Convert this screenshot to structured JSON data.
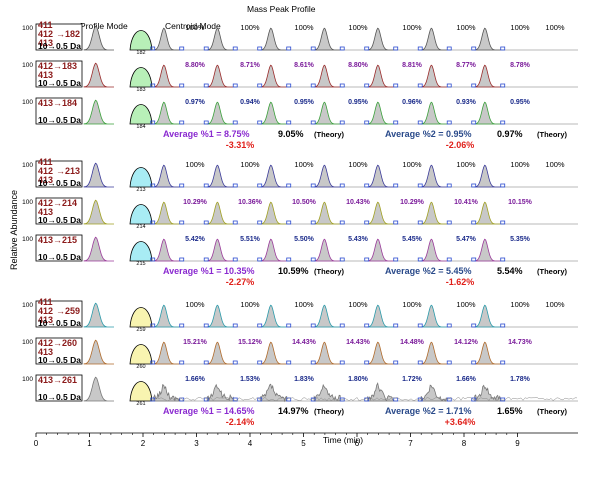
{
  "header": {
    "mass_peak_profile": "Mass Peak Profile",
    "profile_mode": "Profile Mode",
    "centroid_mode": "Centroid Mode"
  },
  "axis": {
    "ylabel": "Relative Abundance",
    "xlabel": "Time (min)",
    "x_ticks": [
      "0",
      "1",
      "2",
      "3",
      "4",
      "5",
      "6",
      "7",
      "8",
      "9"
    ],
    "y_tick": "100"
  },
  "theory_word": "(Theory)",
  "colors": {
    "dark_red": "#8b1a1a",
    "purple": "#7a1a9a",
    "navy": "#1a2a8a",
    "red": "#e0201a",
    "violet": "#8a2ad0",
    "steel_blue": "#2a4a8a",
    "peak_fill": "#c8c8c8",
    "green": "#b8f0b8",
    "cyan": "#a8ecf4",
    "yellow": "#f8f4b0"
  },
  "chart_data": {
    "type": "line",
    "x_range": [
      0,
      9.5
    ],
    "groups": [
      {
        "iso_top": [
          "411",
          "412",
          "413"
        ],
        "resolution": "10→0.5 Da",
        "profile_color": "green",
        "avg1_label": "Average %1 = 8.75%",
        "avg1_theory": "9.05%",
        "avg1_diff": "-3.31%",
        "avg2_label": "Average %2 = 0.95%",
        "avg2_theory": "0.97%",
        "avg2_diff": "-2.06%",
        "rows": [
          {
            "transition": "→182",
            "profile_label": "182",
            "trace_color": "#555555",
            "value_color": "black",
            "values": [
              "100%",
              "100%",
              "100%",
              "100%",
              "100%",
              "100%",
              "100%",
              "100%"
            ]
          },
          {
            "transition": "412→183",
            "profile_label": "183",
            "trace_color": "#9a2a2a",
            "value_color": "purple",
            "values": [
              "8.80%",
              "8.71%",
              "8.61%",
              "8.80%",
              "8.81%",
              "8.77%",
              "8.78%"
            ]
          },
          {
            "transition": "413→184",
            "profile_label": "184",
            "trace_color": "#3aa03a",
            "value_color": "navy",
            "values": [
              "0.97%",
              "0.94%",
              "0.95%",
              "0.95%",
              "0.96%",
              "0.93%",
              "0.95%"
            ]
          }
        ]
      },
      {
        "iso_top": [
          "411",
          "412",
          "413"
        ],
        "resolution": "10→0.5 Da",
        "profile_color": "cyan",
        "avg1_label": "Average %1 = 10.35%",
        "avg1_theory": "10.59%",
        "avg1_diff": "-2.27%",
        "avg2_label": "Average %2 = 5.45%",
        "avg2_theory": "5.54%",
        "avg2_diff": "-1.62%",
        "rows": [
          {
            "transition": "→213",
            "profile_label": "213",
            "trace_color": "#3a3a9a",
            "value_color": "black",
            "values": [
              "100%",
              "100%",
              "100%",
              "100%",
              "100%",
              "100%",
              "100%",
              "100%"
            ]
          },
          {
            "transition": "412→214",
            "profile_label": "214",
            "trace_color": "#a0a020",
            "value_color": "purple",
            "values": [
              "10.29%",
              "10.36%",
              "10.50%",
              "10.43%",
              "10.29%",
              "10.41%",
              "10.15%"
            ]
          },
          {
            "transition": "413→215",
            "profile_label": "215",
            "trace_color": "#9a3a9a",
            "value_color": "navy",
            "values": [
              "5.42%",
              "5.51%",
              "5.50%",
              "5.43%",
              "5.45%",
              "5.47%",
              "5.35%"
            ]
          }
        ]
      },
      {
        "iso_top": [
          "411",
          "412",
          "413"
        ],
        "resolution": "10→0.5 Da",
        "profile_color": "yellow",
        "avg1_label": "Average %1 = 14.65%",
        "avg1_theory": "14.97%",
        "avg1_diff": "-2.14%",
        "avg2_label": "Average %2 = 1.71%",
        "avg2_theory": "1.65%",
        "avg2_diff": "+3.64%",
        "rows": [
          {
            "transition": "→259",
            "profile_label": "259",
            "trace_color": "#2a9aaa",
            "value_color": "black",
            "values": [
              "100%",
              "100%",
              "100%",
              "100%",
              "100%",
              "100%",
              "100%",
              "100%"
            ]
          },
          {
            "transition": "412→260",
            "profile_label": "260",
            "trace_color": "#b06a2a",
            "value_color": "purple",
            "values": [
              "15.21%",
              "15.12%",
              "14.43%",
              "14.43%",
              "14.48%",
              "14.12%",
              "14.73%"
            ]
          },
          {
            "transition": "413→261",
            "profile_label": "261",
            "trace_color": "#777777",
            "value_color": "navy",
            "values": [
              "1.66%",
              "1.53%",
              "1.83%",
              "1.80%",
              "1.72%",
              "1.66%",
              "1.78%"
            ]
          }
        ]
      }
    ]
  }
}
